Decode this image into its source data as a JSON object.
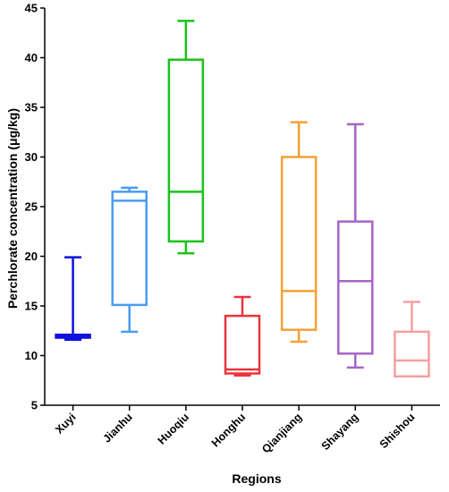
{
  "chart_data": {
    "type": "box",
    "title": "",
    "xlabel": "Regions",
    "ylabel": "Perchlorate concentration (μg/kg)",
    "ylim": [
      5,
      45
    ],
    "yticks": [
      5,
      10,
      15,
      20,
      25,
      30,
      35,
      40,
      45
    ],
    "grid": false,
    "categories": [
      "Xuyi",
      "Jianhu",
      "Huoqiu",
      "Honghu",
      "Qianjiang",
      "Shayang",
      "Shishou"
    ],
    "boxes": [
      {
        "name": "Xuyi",
        "color": "#1010e0",
        "min": 11.6,
        "q1": 11.8,
        "median": 12.0,
        "q3": 12.1,
        "max": 19.9
      },
      {
        "name": "Jianhu",
        "color": "#4a9cf0",
        "min": 12.4,
        "q1": 15.1,
        "median": 25.6,
        "q3": 26.5,
        "max": 26.9
      },
      {
        "name": "Huoqiu",
        "color": "#19c319",
        "min": 20.3,
        "q1": 21.5,
        "median": 26.5,
        "q3": 39.8,
        "max": 43.7
      },
      {
        "name": "Honghu",
        "color": "#e8353b",
        "min": 8.0,
        "q1": 8.2,
        "median": 8.6,
        "q3": 14.0,
        "max": 15.9
      },
      {
        "name": "Qianjiang",
        "color": "#f5a033",
        "min": 11.4,
        "q1": 12.6,
        "median": 16.5,
        "q3": 30.0,
        "max": 33.5
      },
      {
        "name": "Shayang",
        "color": "#a764c8",
        "min": 8.8,
        "q1": 10.2,
        "median": 17.5,
        "q3": 23.5,
        "max": 33.3
      },
      {
        "name": "Shishou",
        "color": "#f5a0a0",
        "min": 7.9,
        "q1": 7.9,
        "median": 9.5,
        "q3": 12.4,
        "max": 15.4
      }
    ]
  }
}
